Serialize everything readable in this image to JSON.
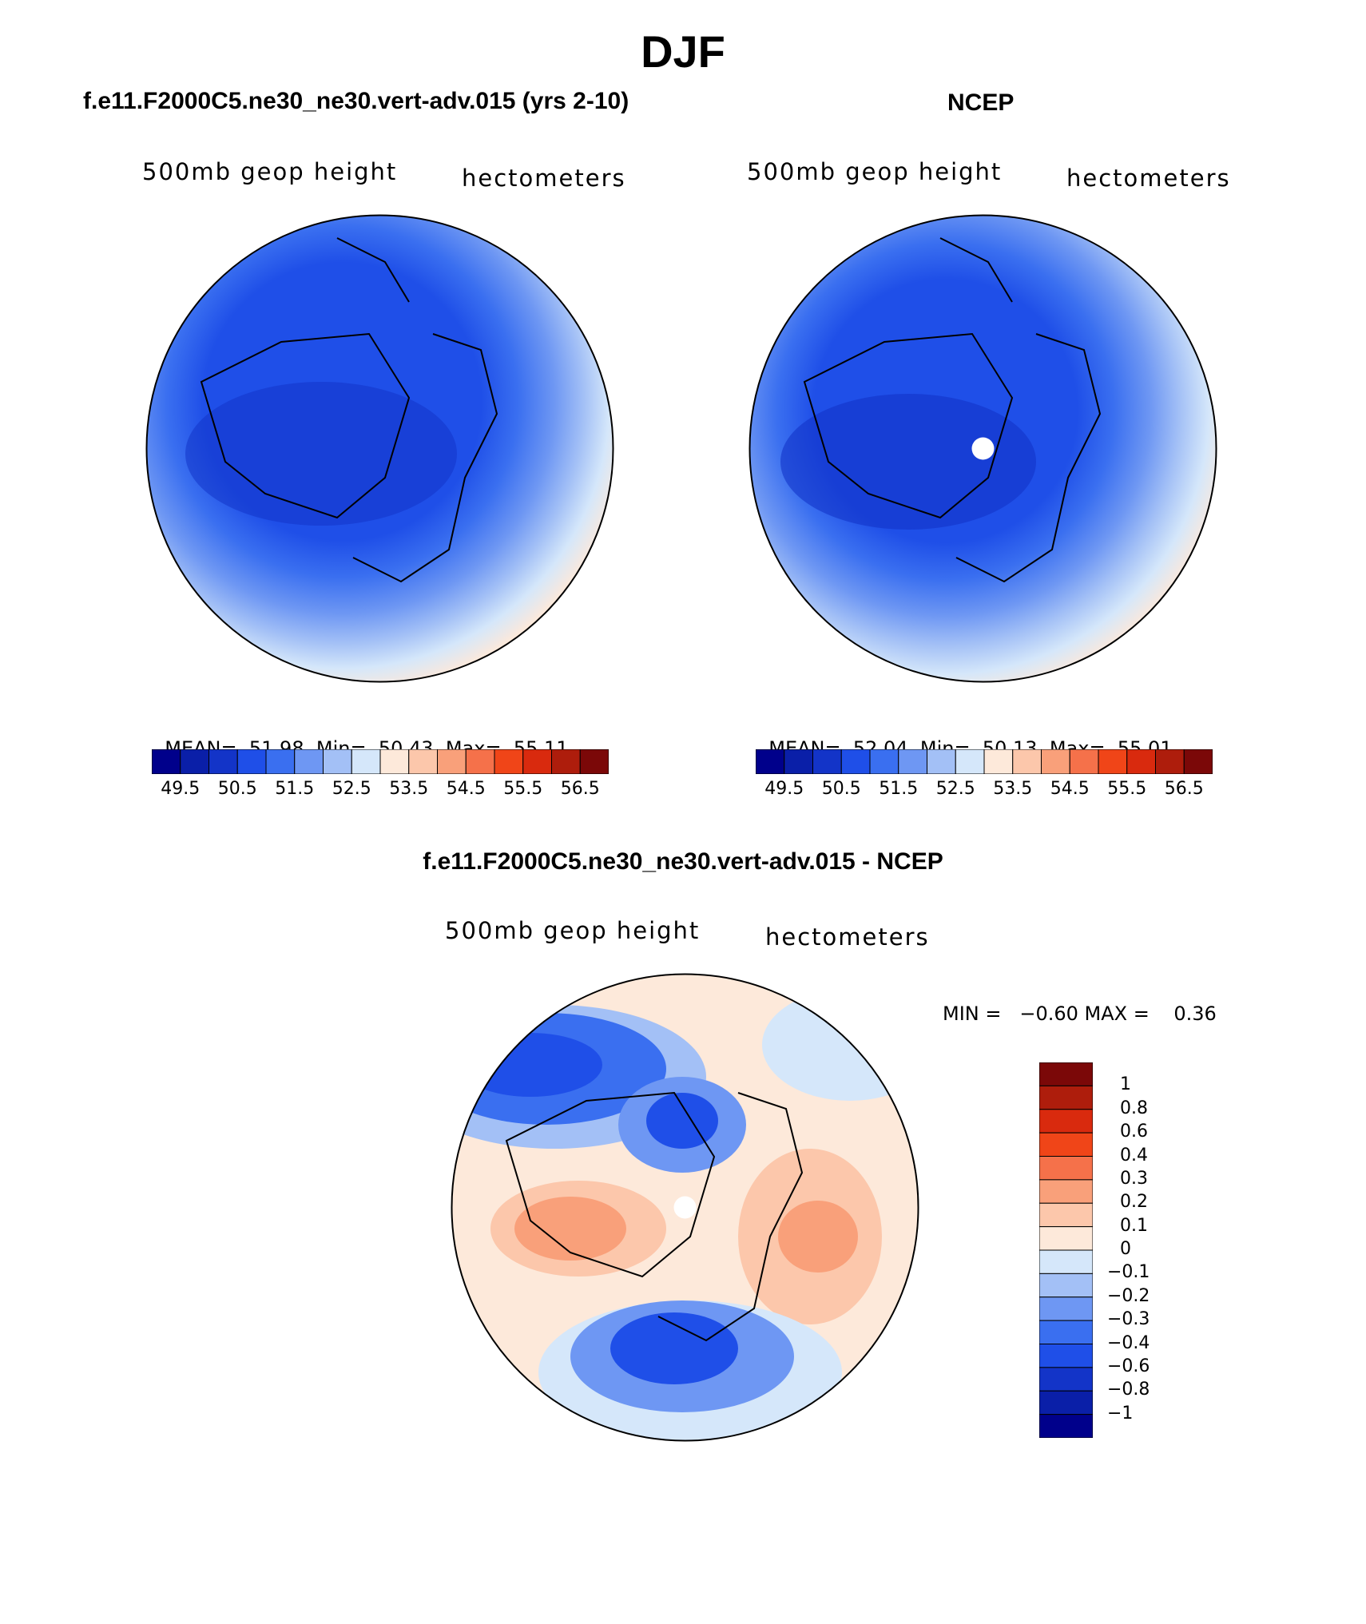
{
  "title": "DJF",
  "panels": {
    "model": {
      "title": "f.e11.F2000C5.ne30_ne30.vert-adv.015 (yrs 2-10)",
      "variable_label": "500mb geop height",
      "units_label": "hectometers",
      "stats": {
        "mean_label": "MEAN=",
        "mean": "51.98",
        "min_label": "Min=",
        "min": "50.43",
        "max_label": "Max=",
        "max": "55.11"
      }
    },
    "obs": {
      "title": "NCEP",
      "variable_label": "500mb geop height",
      "units_label": "hectometers",
      "stats": {
        "mean_label": "MEAN=",
        "mean": "52.04",
        "min_label": "Min=",
        "min": "50.13",
        "max_label": "Max=",
        "max": "55.01"
      }
    },
    "diff": {
      "title": "f.e11.F2000C5.ne30_ne30.vert-adv.015 - NCEP",
      "variable_label": "500mb geop height",
      "units_label": "hectometers",
      "minmax_text": "MIN =   −0.60 MAX =    0.36"
    }
  },
  "colorbars": {
    "abs": {
      "colors": [
        "#00008b",
        "#0a1fa8",
        "#1334c8",
        "#1f4fe8",
        "#3a6ff0",
        "#6e97f3",
        "#a3c0f6",
        "#d5e7fa",
        "#fde9da",
        "#fcc7ab",
        "#f9a07a",
        "#f5714a",
        "#f04518",
        "#d92a0e",
        "#ae1d0c",
        "#7b0808"
      ],
      "tick_labels": [
        "49.5",
        "50.5",
        "51.5",
        "52.5",
        "53.5",
        "54.5",
        "55.5",
        "56.5"
      ]
    },
    "diff": {
      "colors": [
        "#7b0808",
        "#ae1d0c",
        "#d92a0e",
        "#f04518",
        "#f5714a",
        "#f9a07a",
        "#fcc7ab",
        "#fde9da",
        "#d5e7fa",
        "#a3c0f6",
        "#6e97f3",
        "#3a6ff0",
        "#1f4fe8",
        "#1334c8",
        "#0a1fa8",
        "#00008b"
      ],
      "tick_labels": [
        "1",
        "0.8",
        "0.6",
        "0.4",
        "0.3",
        "0.2",
        "0.1",
        "0",
        "−0.1",
        "−0.2",
        "−0.3",
        "−0.4",
        "−0.6",
        "−0.8",
        "−1"
      ]
    }
  }
}
